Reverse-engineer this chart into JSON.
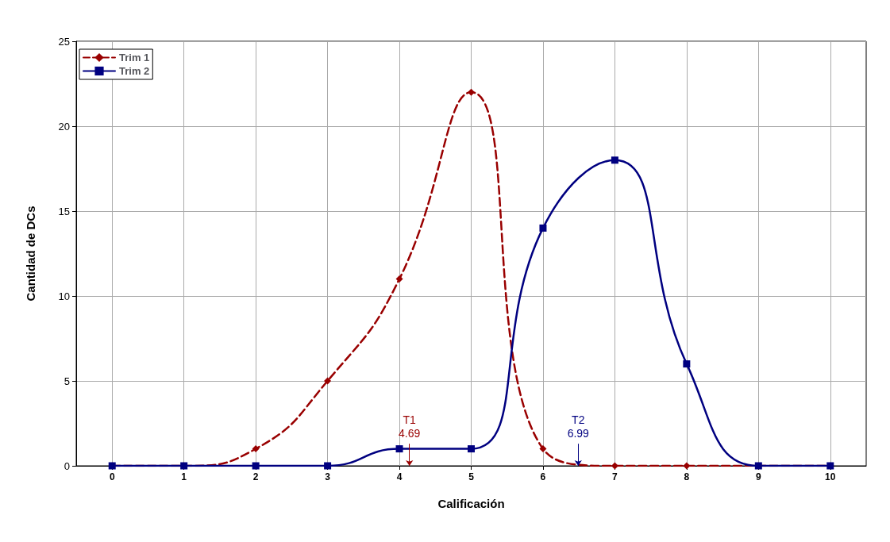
{
  "chart_data": {
    "type": "line",
    "xlabel": "Calificación",
    "ylabel": "Cantidad de DCs",
    "x": [
      0,
      1,
      2,
      3,
      4,
      5,
      6,
      7,
      8,
      9,
      10
    ],
    "series": [
      {
        "name": "Trim 1",
        "color": "#990000",
        "values": [
          0,
          0,
          1,
          5,
          11,
          22,
          1,
          0,
          0,
          0,
          0
        ],
        "marker": "diamond",
        "line_style": "dashed"
      },
      {
        "name": "Trim 2",
        "color": "#000080",
        "values": [
          0,
          0,
          0,
          0,
          1,
          1,
          14,
          18,
          6,
          0,
          0
        ],
        "marker": "square",
        "line_style": "solid"
      }
    ],
    "xlim": [
      -0.5,
      10.5
    ],
    "xticks": [
      0,
      1,
      2,
      3,
      4,
      5,
      6,
      7,
      8,
      9,
      10
    ],
    "ylim": [
      0,
      25
    ],
    "yticks": [
      0,
      5,
      10,
      15,
      20,
      25
    ],
    "grid": true,
    "legend": "top left",
    "annotations": [
      "T1\n4.69",
      {
        "text": "T2\n6.99",
        "x": 6.49,
        "y": 0
      }
    ]
  }
}
